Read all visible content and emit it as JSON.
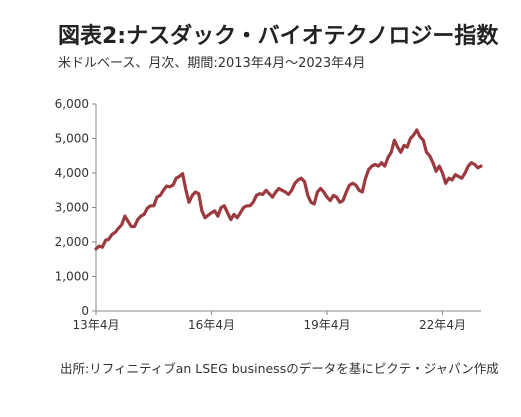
{
  "header": {
    "title": "図表2:ナスダック・バイオテクノロジー指数",
    "subtitle": "米ドルベース、月次、期間:2013年4月〜2023年4月"
  },
  "footer": {
    "source": "出所:リフィニティブan LSEG businessのデータを基にピクテ・ジャパン作成"
  },
  "colors": {
    "line": "#9b3a3f",
    "axis": "#888888",
    "grid": "#dddddd"
  },
  "chart_data": {
    "type": "line",
    "title": "図表2:ナスダック・バイオテクノロジー指数",
    "subtitle": "米ドルベース、月次、期間:2013年4月〜2023年4月",
    "xlabel": "",
    "ylabel": "",
    "ylim": [
      0,
      6000
    ],
    "yticks": [
      0,
      1000,
      2000,
      3000,
      4000,
      5000,
      6000
    ],
    "ytick_labels": [
      "0",
      "1,000",
      "2,000",
      "3,000",
      "4,000",
      "5,000",
      "6,000"
    ],
    "x_tick_labels": [
      "13年4月",
      "16年4月",
      "19年4月",
      "22年4月"
    ],
    "x_tick_dates": [
      "2013-04",
      "2016-04",
      "2019-04",
      "2022-04"
    ],
    "x_start": "2013-04",
    "x_end": "2023-04",
    "grid": false,
    "series": [
      {
        "dates": [
          "2013-04",
          "2013-05",
          "2013-06",
          "2013-07",
          "2013-08",
          "2013-09",
          "2013-10",
          "2013-11",
          "2013-12",
          "2014-01",
          "2014-02",
          "2014-03",
          "2014-04",
          "2014-05",
          "2014-06",
          "2014-07",
          "2014-08",
          "2014-09",
          "2014-10",
          "2014-11",
          "2014-12",
          "2015-01",
          "2015-02",
          "2015-03",
          "2015-04",
          "2015-05",
          "2015-06",
          "2015-07",
          "2015-08",
          "2015-09",
          "2015-10",
          "2015-11",
          "2015-12",
          "2016-01",
          "2016-02",
          "2016-03",
          "2016-04",
          "2016-05",
          "2016-06",
          "2016-07",
          "2016-08",
          "2016-09",
          "2016-10",
          "2016-11",
          "2016-12",
          "2017-01",
          "2017-02",
          "2017-03",
          "2017-04",
          "2017-05",
          "2017-06",
          "2017-07",
          "2017-08",
          "2017-09",
          "2017-10",
          "2017-11",
          "2017-12",
          "2018-01",
          "2018-02",
          "2018-03",
          "2018-04",
          "2018-05",
          "2018-06",
          "2018-07",
          "2018-08",
          "2018-09",
          "2018-10",
          "2018-11",
          "2018-12",
          "2019-01",
          "2019-02",
          "2019-03",
          "2019-04",
          "2019-05",
          "2019-06",
          "2019-07",
          "2019-08",
          "2019-09",
          "2019-10",
          "2019-11",
          "2019-12",
          "2020-01",
          "2020-02",
          "2020-03",
          "2020-04",
          "2020-05",
          "2020-06",
          "2020-07",
          "2020-08",
          "2020-09",
          "2020-10",
          "2020-11",
          "2020-12",
          "2021-01",
          "2021-02",
          "2021-03",
          "2021-04",
          "2021-05",
          "2021-06",
          "2021-07",
          "2021-08",
          "2021-09",
          "2021-10",
          "2021-11",
          "2021-12",
          "2022-01",
          "2022-02",
          "2022-03",
          "2022-04",
          "2022-05",
          "2022-06",
          "2022-07",
          "2022-08",
          "2022-09",
          "2022-10",
          "2022-11",
          "2022-12",
          "2023-01",
          "2023-02",
          "2023-03",
          "2023-04"
        ],
        "values": [
          1800,
          1880,
          1850,
          2050,
          2080,
          2220,
          2280,
          2400,
          2500,
          2750,
          2600,
          2450,
          2450,
          2650,
          2750,
          2800,
          2980,
          3050,
          3050,
          3300,
          3350,
          3500,
          3620,
          3600,
          3650,
          3850,
          3900,
          3980,
          3520,
          3150,
          3350,
          3450,
          3400,
          2900,
          2700,
          2780,
          2850,
          2900,
          2750,
          3000,
          3050,
          2850,
          2650,
          2800,
          2700,
          2850,
          3000,
          3050,
          3050,
          3150,
          3350,
          3400,
          3380,
          3500,
          3400,
          3300,
          3450,
          3550,
          3500,
          3450,
          3380,
          3500,
          3700,
          3800,
          3850,
          3750,
          3350,
          3150,
          3100,
          3450,
          3550,
          3450,
          3300,
          3200,
          3350,
          3300,
          3150,
          3200,
          3450,
          3650,
          3700,
          3650,
          3500,
          3450,
          3850,
          4100,
          4200,
          4250,
          4200,
          4300,
          4200,
          4450,
          4600,
          4950,
          4750,
          4600,
          4800,
          4750,
          5000,
          5100,
          5250,
          5050,
          4950,
          4600,
          4500,
          4300,
          4050,
          4200,
          4000,
          3700,
          3850,
          3800,
          3950,
          3900,
          3850,
          4000,
          4200,
          4300,
          4250,
          4150,
          4200
        ]
      }
    ]
  }
}
